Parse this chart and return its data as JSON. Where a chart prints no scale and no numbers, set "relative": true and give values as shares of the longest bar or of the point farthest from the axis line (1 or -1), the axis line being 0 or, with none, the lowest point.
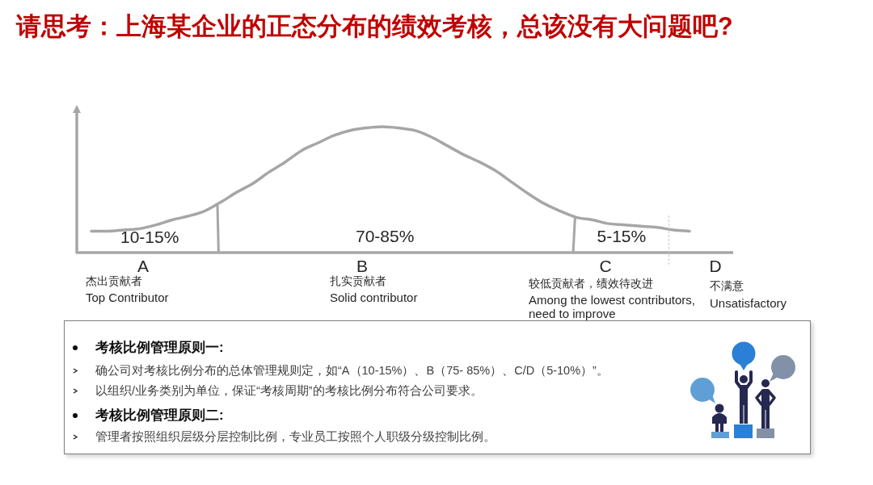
{
  "chart_data": {
    "type": "line",
    "title": "请思考：上海某企业的正态分布的绩效考核，总该没有大问题吧?",
    "categories": [
      null,
      null,
      null,
      null,
      null,
      null,
      null,
      null,
      null,
      null,
      null,
      null,
      null,
      null,
      null,
      null,
      null,
      null,
      null,
      null,
      null,
      null,
      null,
      null,
      null,
      null,
      null,
      null,
      null,
      null,
      null,
      null,
      null,
      null,
      null,
      null,
      null,
      null
    ],
    "values": [
      0.17,
      0.17,
      0.18,
      0.19,
      0.22,
      0.26,
      0.29,
      0.33,
      0.4,
      0.48,
      0.55,
      0.64,
      0.72,
      0.81,
      0.87,
      0.93,
      0.97,
      0.99,
      1,
      0.99,
      0.97,
      0.92,
      0.85,
      0.78,
      0.72,
      0.65,
      0.56,
      0.47,
      0.39,
      0.33,
      0.28,
      0.26,
      0.23,
      0.22,
      0.21,
      0.2,
      0.18,
      0.17
    ],
    "color": "#a6a6a6",
    "relative": true,
    "tick_labels": false,
    "annotations": [
      "10-15%",
      "70-85%",
      "5-15%",
      "A",
      "B",
      "C",
      "D",
      "杰出贡献者",
      "Top Contributor",
      "扎实贡献者",
      "Solid contributor",
      "较低贡献者，绩效待改进",
      "Among the lowest contributors, need to improve",
      "不满意",
      "Unsatisfactory",
      "考核比例管理原则一:",
      "确公司对考核比例分布的总体管理规则定，如“A（10-15%）、B（75- 85%）、C/D（5-10%）”。",
      "以组织/业务类别为单位，保证“考核周期”的考核比例分布符合公司要求。",
      "考核比例管理原则二:",
      "管理者按照组织层级分层控制比例，专业员工按照个人职级分级控制比例。"
    ]
  }
}
